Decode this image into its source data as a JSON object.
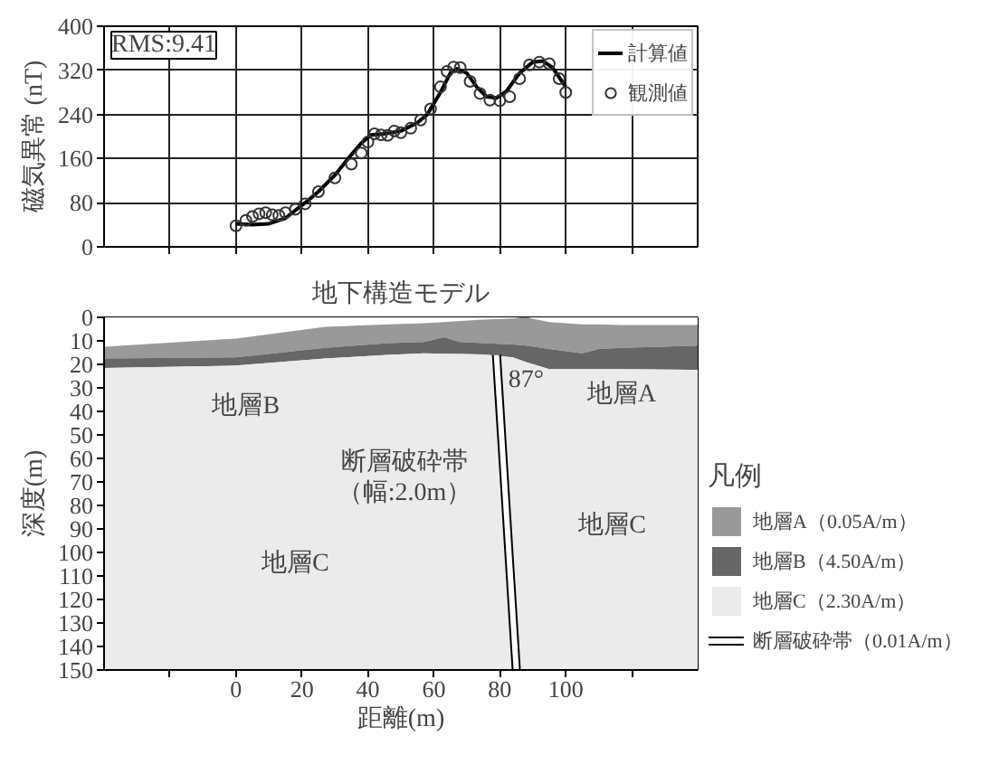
{
  "chart_data": [
    {
      "type": "line",
      "ylabel": "磁気異常 (nT)",
      "xlim": [
        -40,
        140
      ],
      "ylim": [
        0,
        400
      ],
      "xticks": [
        {
          "value": -20,
          "label": null
        },
        {
          "value": 0,
          "label": null
        },
        {
          "value": 20,
          "label": null
        },
        {
          "value": 40,
          "label": null
        },
        {
          "value": 60,
          "label": null
        },
        {
          "value": 80,
          "label": null
        },
        {
          "value": 100,
          "label": null
        },
        {
          "value": 120,
          "label": null
        }
      ],
      "yticks": [
        0,
        80,
        160,
        240,
        320,
        400
      ],
      "tick_labels": "y",
      "grid": true,
      "legend": "top right",
      "annotations": [
        "RMS:9.41"
      ],
      "series": [
        {
          "name": "計算値",
          "type": "line",
          "color": "#000000",
          "marker": "none",
          "x": [
            0,
            5,
            10,
            15,
            21,
            25,
            30,
            34,
            38,
            41,
            45,
            50,
            55,
            58,
            62,
            65,
            67,
            70,
            73,
            76,
            79,
            82,
            86,
            90,
            93,
            96,
            100
          ],
          "values": [
            42,
            40,
            42,
            52,
            80,
            100,
            130,
            160,
            188,
            203,
            205,
            210,
            225,
            240,
            280,
            315,
            323,
            315,
            290,
            272,
            270,
            282,
            315,
            335,
            337,
            325,
            290
          ]
        },
        {
          "name": "観測値",
          "type": "scatter",
          "color": "#333333",
          "marker": "circle",
          "x": [
            0,
            3,
            5,
            7,
            9,
            11,
            13,
            15,
            18,
            21,
            25,
            30,
            35,
            38,
            40,
            42,
            44,
            46,
            48,
            50,
            53,
            56,
            59,
            62,
            64,
            66,
            68,
            71,
            74,
            77,
            80,
            83,
            86,
            89,
            92,
            95,
            98,
            100
          ],
          "values": [
            38,
            48,
            55,
            60,
            62,
            58,
            57,
            62,
            68,
            78,
            100,
            125,
            150,
            170,
            190,
            205,
            203,
            202,
            210,
            207,
            215,
            230,
            250,
            290,
            318,
            326,
            325,
            300,
            278,
            266,
            265,
            272,
            305,
            330,
            335,
            332,
            305,
            280
          ]
        }
      ]
    },
    {
      "type": "area",
      "title": "地下構造モデル",
      "xlabel": "距離(m)",
      "ylabel": "深度(m)",
      "xlim": [
        -40,
        140
      ],
      "ylim": [
        150,
        0
      ],
      "xticks": [
        {
          "value": -20,
          "label": null
        },
        0,
        20,
        40,
        60,
        80,
        100,
        {
          "value": 120,
          "label": null
        }
      ],
      "yticks": [
        0,
        10,
        20,
        30,
        40,
        50,
        60,
        70,
        80,
        90,
        100,
        110,
        120,
        130,
        140,
        150
      ],
      "stacked": true,
      "legend": "right",
      "legend_title": "凡例",
      "x": [
        -40,
        0,
        27,
        46,
        57,
        63,
        68,
        75,
        84,
        88,
        95,
        105,
        110,
        117,
        140
      ],
      "series": [
        {
          "color": "#ffffff",
          "values": [
            12.5,
            9,
            4,
            3,
            2.5,
            2,
            1.5,
            1,
            0.5,
            0,
            2,
            3,
            3,
            3.3,
            3.3
          ]
        },
        {
          "name": "地層A（0.05A/m）",
          "color": "#999999",
          "values": [
            5,
            8,
            9,
            8,
            8,
            6.5,
            9,
            10,
            11,
            12,
            11.5,
            12.3,
            10.5,
            9.7,
            8.7
          ]
        },
        {
          "name": "地層B（4.50A/m）",
          "color": "#666666",
          "values": [
            4,
            3.5,
            4.5,
            5,
            4.8,
            7,
            5.1,
            4.8,
            5.5,
            7,
            8.5,
            6.7,
            8.5,
            9,
            10.3
          ]
        },
        {
          "name": "地層C（2.30A/m）",
          "color": "#ebebeb",
          "values": [
            128.5,
            129.5,
            132.5,
            134,
            134.7,
            134.5,
            134.4,
            134.2,
            133,
            131,
            128,
            128,
            128,
            128,
            127.7
          ]
        },
        {
          "name": "断層破砕帯（0.01A/m）",
          "type": "line",
          "color": "#ffffff",
          "x": [
            79,
            85
          ],
          "values": [
            16,
            150
          ]
        }
      ],
      "annotations": [
        "地層A",
        "地層B",
        "87°",
        "断層破砕帯",
        "（幅:2.0m）",
        "地層C",
        "地層C"
      ]
    }
  ]
}
